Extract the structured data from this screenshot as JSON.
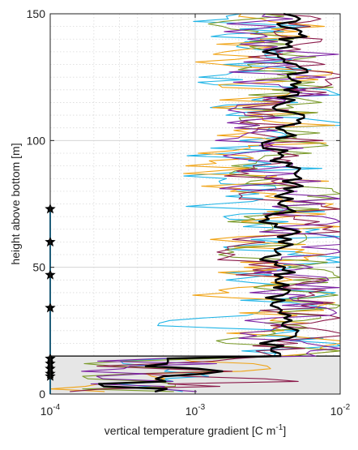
{
  "chart_data": {
    "type": "line",
    "title": "",
    "xlabel": "vertical temperature gradient [C m",
    "xlabel_superscript": "-1",
    "xlabel_suffix": "]",
    "ylabel": "height above bottom [m]",
    "x_scale": "log",
    "xlim": [
      0.0001,
      0.01
    ],
    "ylim": [
      0,
      150
    ],
    "x_ticks": [
      0.0001,
      0.001,
      0.01
    ],
    "x_tick_labels": [
      {
        "base": "10",
        "exp": "-4"
      },
      {
        "base": "10",
        "exp": "-3"
      },
      {
        "base": "10",
        "exp": "-2"
      }
    ],
    "y_ticks": [
      0,
      50,
      100,
      150
    ],
    "y_tick_labels": [
      "0",
      "50",
      "100",
      "150"
    ],
    "grid": true,
    "grid_minor": true,
    "legend": "none",
    "shaded_region": {
      "y_from": 0,
      "y_to": 15,
      "color": "#e6e6e6"
    },
    "threshold_line": {
      "y": 15
    },
    "mooring_line": {
      "x": 0.0001,
      "y_from": 0,
      "y_to": 73,
      "color": "#1f9bd1"
    },
    "markers": {
      "shape": "star",
      "x": 0.0001,
      "y": [
        73,
        60,
        47,
        34,
        14,
        12,
        10,
        8,
        7
      ],
      "color": "#000000"
    },
    "series": [
      {
        "color": "#1fb4e6",
        "seed": 11,
        "center": 0.0035,
        "spread": 0.45
      },
      {
        "color": "#f0a315",
        "seed": 23,
        "center": 0.0034,
        "spread": 0.42
      },
      {
        "color": "#7a9a2a",
        "seed": 37,
        "center": 0.0041,
        "spread": 0.32
      },
      {
        "color": "#8b1a4a",
        "seed": 51,
        "center": 0.0043,
        "spread": 0.3
      },
      {
        "color": "#7b1fa2",
        "seed": 67,
        "center": 0.0044,
        "spread": 0.33
      },
      {
        "color": "#000000",
        "seed": 0,
        "center": 0.0038,
        "spread": 0.12,
        "mean": true
      }
    ],
    "y_step": 1
  }
}
